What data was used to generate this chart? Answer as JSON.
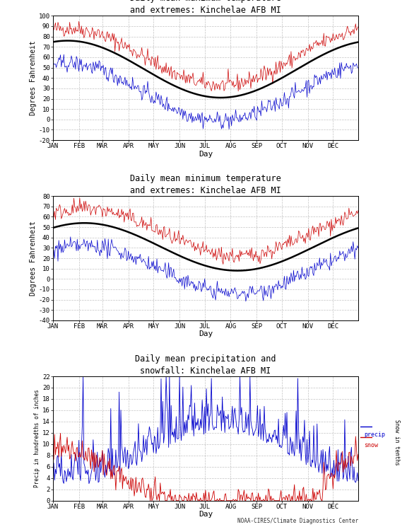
{
  "title1": "Daily mean maximum temperature\nand extremes: Kinchelae AFB MI",
  "title2": "Daily mean minimum temperature\nand extremes: Kinchelae AFB MI",
  "title3": "Daily mean precipitation and\nsnowfall: Kinchelae AFB MI",
  "ylabel1": "Degrees Fahrenheit",
  "ylabel2": "Degrees Fahrenheit",
  "ylabel3_left": "Precip in hundredths of inches",
  "ylabel3_right": "Snow in tenths",
  "xlabel": "Day",
  "months": [
    "JAN",
    "FEB",
    "MAR",
    "APR",
    "MAY",
    "JUN",
    "JUL",
    "AUG",
    "SEP",
    "OCT",
    "NOV",
    "DEC"
  ],
  "ylim1": [
    -20,
    100
  ],
  "ylim2": [
    -40,
    80
  ],
  "ylim3": [
    0,
    22
  ],
  "yticks1": [
    -20,
    -10,
    0,
    10,
    20,
    30,
    40,
    50,
    60,
    70,
    80,
    90,
    100
  ],
  "yticks2": [
    -40,
    -30,
    -20,
    -10,
    0,
    10,
    20,
    30,
    40,
    50,
    60,
    70,
    80
  ],
  "yticks3": [
    0,
    2,
    4,
    6,
    8,
    10,
    12,
    14,
    16,
    18,
    20,
    22
  ],
  "bg_color": "#ffffff",
  "plot_bg_color": "#ffffff",
  "grid_color": "#aaaaaa",
  "line_color_red": "#cc0000",
  "line_color_blue": "#0000cc",
  "line_color_black": "#000000",
  "footer": "NOAA-CIRES/Climate Diagnostics Center",
  "legend_precip": "precip",
  "legend_snow": "snow",
  "title_fontsize": 8.5,
  "label_fontsize": 7,
  "tick_fontsize": 6.5,
  "xlabel_fontsize": 8
}
